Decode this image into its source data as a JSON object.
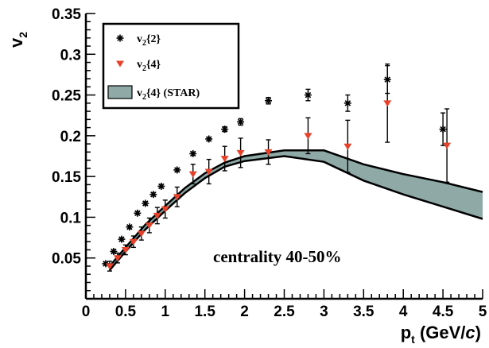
{
  "chart_data": {
    "type": "scatter",
    "title": "",
    "xlabel": {
      "main": "p",
      "sub": "t",
      "unit_open": " (GeV/",
      "unit_italic": "c",
      "unit_close": ")"
    },
    "ylabel": {
      "main": "v",
      "sub": "2"
    },
    "xlim": [
      0,
      5
    ],
    "ylim": [
      0,
      0.35
    ],
    "xticks": [
      "0",
      "0.5",
      "1",
      "1.5",
      "2",
      "2.5",
      "3",
      "3.5",
      "4",
      "4.5",
      "5"
    ],
    "yticks": [
      "0.05",
      "0.1",
      "0.15",
      "0.2",
      "0.25",
      "0.3",
      "0.35"
    ],
    "grid": false,
    "legend_position": "top-left",
    "annotation": "centrality 40-50%",
    "colors": {
      "v2_2": "#000000",
      "v2_4": "#e8412a",
      "band_fill": "#8ea9a6",
      "band_edge": "#000000"
    },
    "series": [
      {
        "name": {
          "main": "v",
          "sub": "2",
          "rest": "{2}"
        },
        "marker": "asterisk",
        "x": [
          0.25,
          0.35,
          0.45,
          0.55,
          0.65,
          0.75,
          0.85,
          0.95,
          1.15,
          1.35,
          1.55,
          1.75,
          1.95,
          2.3,
          2.8,
          3.3,
          3.8,
          4.5
        ],
        "y": [
          0.043,
          0.058,
          0.073,
          0.088,
          0.105,
          0.117,
          0.128,
          0.138,
          0.158,
          0.178,
          0.196,
          0.208,
          0.217,
          0.243,
          0.25,
          0.24,
          0.269,
          0.208
        ],
        "err": [
          0.002,
          0.002,
          0.002,
          0.002,
          0.002,
          0.002,
          0.002,
          0.002,
          0.002,
          0.002,
          0.002,
          0.003,
          0.004,
          0.004,
          0.007,
          0.01,
          0.017,
          0.02
        ]
      },
      {
        "name": {
          "main": "v",
          "sub": "2",
          "rest": "{4}"
        },
        "marker": "triangle-down",
        "x": [
          0.3,
          0.4,
          0.5,
          0.6,
          0.7,
          0.8,
          0.9,
          1.0,
          1.15,
          1.35,
          1.55,
          1.75,
          1.95,
          2.3,
          2.8,
          3.3,
          3.8,
          4.55
        ],
        "y": [
          0.04,
          0.05,
          0.06,
          0.07,
          0.08,
          0.09,
          0.102,
          0.11,
          0.125,
          0.153,
          0.156,
          0.172,
          0.179,
          0.18,
          0.2,
          0.187,
          0.24,
          0.188
        ],
        "err": [
          0.006,
          0.006,
          0.006,
          0.007,
          0.008,
          0.009,
          0.01,
          0.011,
          0.012,
          0.012,
          0.015,
          0.015,
          0.018,
          0.015,
          0.022,
          0.032,
          0.048,
          0.045
        ]
      },
      {
        "name": {
          "main": "v",
          "sub": "2",
          "rest": "{4} (STAR)"
        },
        "marker": "band",
        "x": [
          0.3,
          0.5,
          0.75,
          1.0,
          1.25,
          1.5,
          1.75,
          2.0,
          2.5,
          3.0,
          3.5,
          4.0,
          4.5,
          5.0
        ],
        "low": [
          0.035,
          0.058,
          0.085,
          0.108,
          0.13,
          0.148,
          0.162,
          0.169,
          0.175,
          0.168,
          0.145,
          0.128,
          0.113,
          0.098
        ],
        "high": [
          0.04,
          0.063,
          0.091,
          0.114,
          0.136,
          0.154,
          0.167,
          0.175,
          0.182,
          0.182,
          0.165,
          0.153,
          0.143,
          0.131
        ]
      }
    ]
  }
}
